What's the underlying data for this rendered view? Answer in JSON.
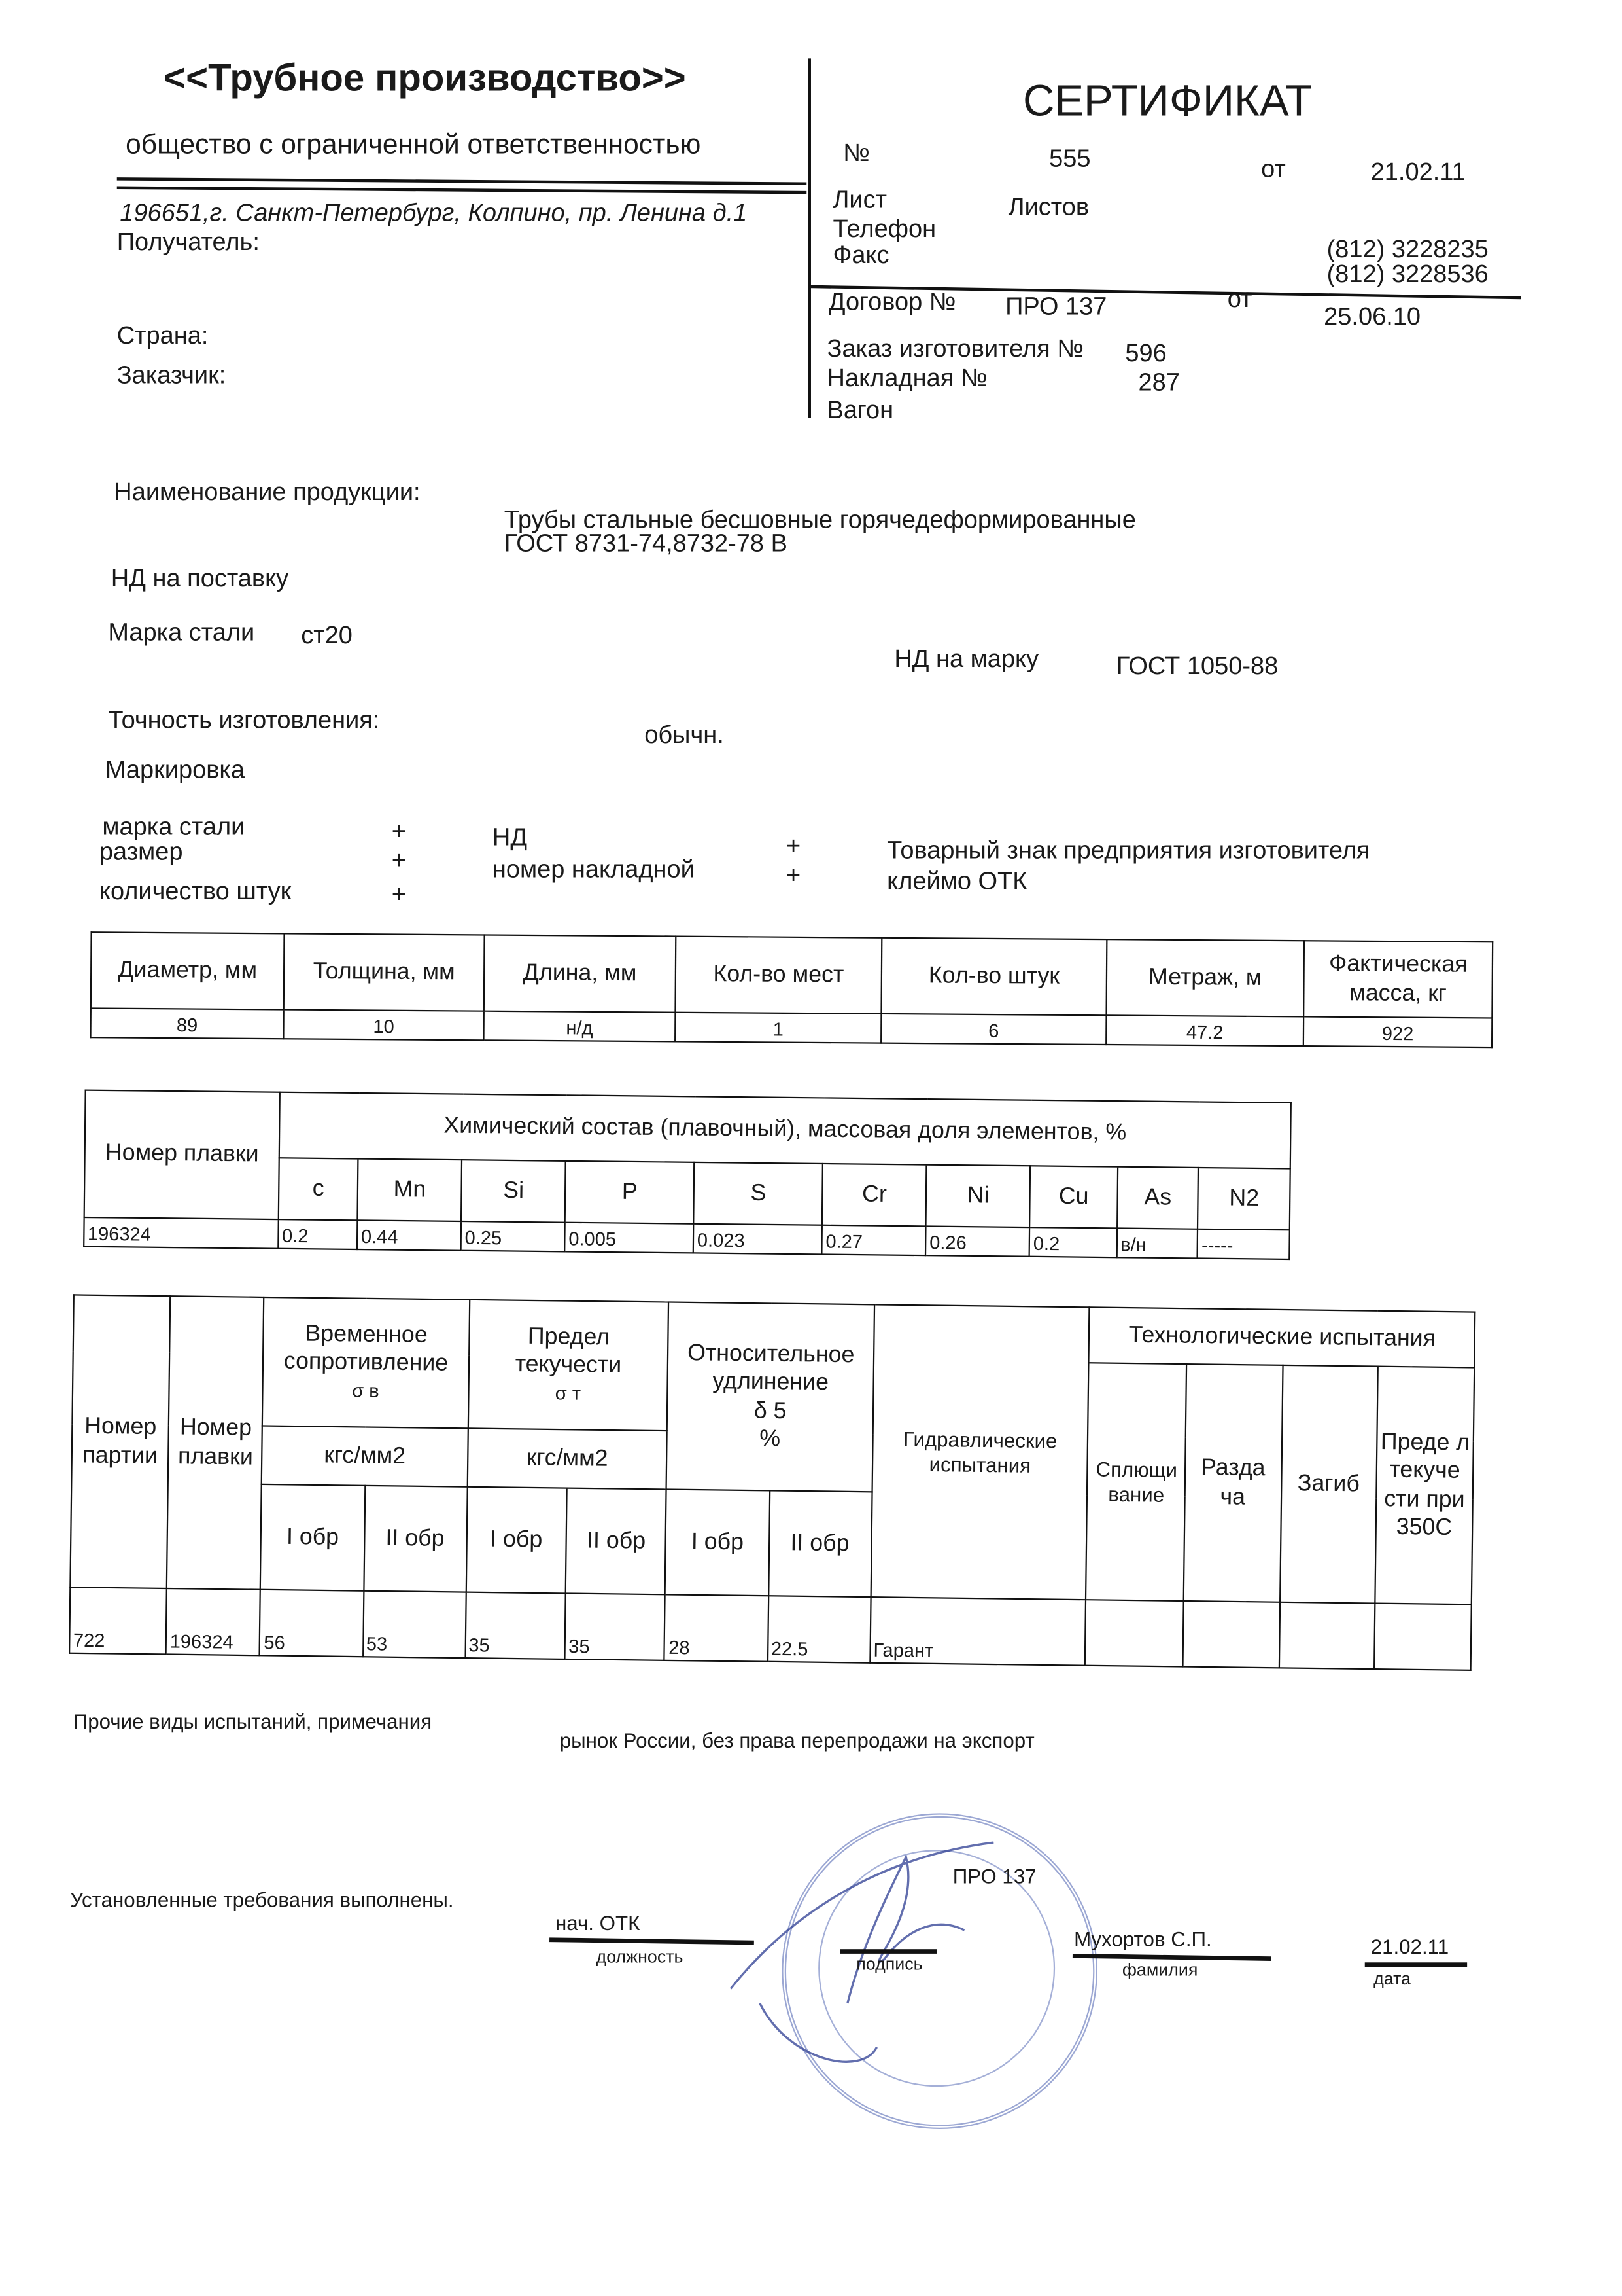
{
  "company": {
    "name": "<<Трубное производство>>",
    "legal_form": "общество с ограниченной ответственностью",
    "address": "196651,г. Санкт-Петербург, Колпино, пр. Ленина д.1"
  },
  "left_fields": {
    "recipient": "Получатель:",
    "country": "Страна:",
    "customer": "Заказчик:"
  },
  "certificate": {
    "title": "СЕРТИФИКАТ",
    "number_label": "№",
    "number": "555",
    "date_label": "от",
    "date": "21.02.11",
    "sheet_label": "Лист",
    "sheets_label": "Листов",
    "phone_label": "Телефон",
    "fax_label": "Факс",
    "phone": "(812) 3228235",
    "fax": "(812) 3228536",
    "contract_label": "Договор №",
    "contract": "ПРО 137",
    "contract_date_label": "от",
    "contract_date": "25.06.10",
    "order_label": "Заказ изготовителя №",
    "order": "596",
    "waybill_label": "Накладная №",
    "waybill": "287",
    "wagon_label": "Вагон"
  },
  "product": {
    "name_label": "Наименование продукции:",
    "name_line1": "Трубы стальные бесшовные горячедеформированные",
    "name_line2": "ГОСТ 8731-74,8732-78 В",
    "nd_supply_label": "НД на поставку",
    "steel_label": "Марка стали",
    "steel": "ст20",
    "nd_grade_label": "НД на марку",
    "nd_grade": "ГОСТ  1050-88",
    "accuracy_label": "Точность изготовления:",
    "accuracy": "обычн.",
    "marking_label": "Маркировка"
  },
  "marking": {
    "col1": [
      {
        "label": "марка стали",
        "mark": "+"
      },
      {
        "label": "размер",
        "mark": "+"
      },
      {
        "label": "количество штук",
        "mark": "+"
      }
    ],
    "col2": [
      {
        "label": "НД",
        "mark": "+"
      },
      {
        "label": "номер накладной",
        "mark": "+"
      }
    ],
    "col3": [
      "Товарный знак предприятия изготовителя",
      "клеймо ОТК"
    ]
  },
  "dims_table": {
    "headers": [
      "Диаметр, мм",
      "Толщина, мм",
      "Длина, мм",
      "Кол-во мест",
      "Кол-во штук",
      "Метраж, м",
      "Фактическая масса, кг"
    ],
    "row": [
      "89",
      "10",
      "н/д",
      "1",
      "6",
      "47.2",
      "922"
    ]
  },
  "chem_table": {
    "heat_header": "Номер плавки",
    "title": "Химический состав (плавочный), массовая доля элементов, %",
    "elements": [
      "с",
      "Mn",
      "Si",
      "P",
      "S",
      "Cr",
      "Ni",
      "Cu",
      "As",
      "N2"
    ],
    "heat": "196324",
    "values": [
      "0.2",
      "0.44",
      "0.25",
      "0.005",
      "0.023",
      "0.27",
      "0.26",
      "0.2",
      "в/н",
      "-----"
    ]
  },
  "mech_table": {
    "batch_header": "Номер партии",
    "heat_header": "Номер плавки",
    "tensile": {
      "line1": "Временное сопротивление",
      "symbol": "σ в",
      "unit": "кгс/мм2"
    },
    "yield": {
      "line1": "Предел текучести",
      "symbol": "σ т",
      "unit": "кгс/мм2"
    },
    "elong": {
      "line1": "Относительное удлинение",
      "symbol": "δ 5",
      "unit": "%"
    },
    "sample1": "I обр",
    "sample2": "II обр",
    "hydro": "Гидравлические испытания",
    "tech": "Технологические испытания",
    "tech_cols": [
      "Сплющи вание",
      "Разда ча",
      "Загиб",
      "Преде л текуче сти при 350С"
    ],
    "row": {
      "batch": "722",
      "heat": "196324",
      "values": [
        "56",
        "53",
        "35",
        "35",
        "28",
        "22.5"
      ],
      "hydro": "Гарант"
    }
  },
  "footer": {
    "other_label": "Прочие виды испытаний, примечания",
    "other_value": "рынок  России, без права перепродажи на экспорт",
    "requirements": "Установленные требования выполнены.",
    "position": "нач. ОТК",
    "position_caption": "должность",
    "signature_caption": "подпись",
    "surname": "Мухортов С.П.",
    "surname_caption": "фамилия",
    "date": "21.02.11",
    "date_caption": "дата",
    "stamp_text": "ПРО 137"
  },
  "colors": {
    "ink": "#1a1a1a",
    "stamp": "#4a5fb0"
  }
}
